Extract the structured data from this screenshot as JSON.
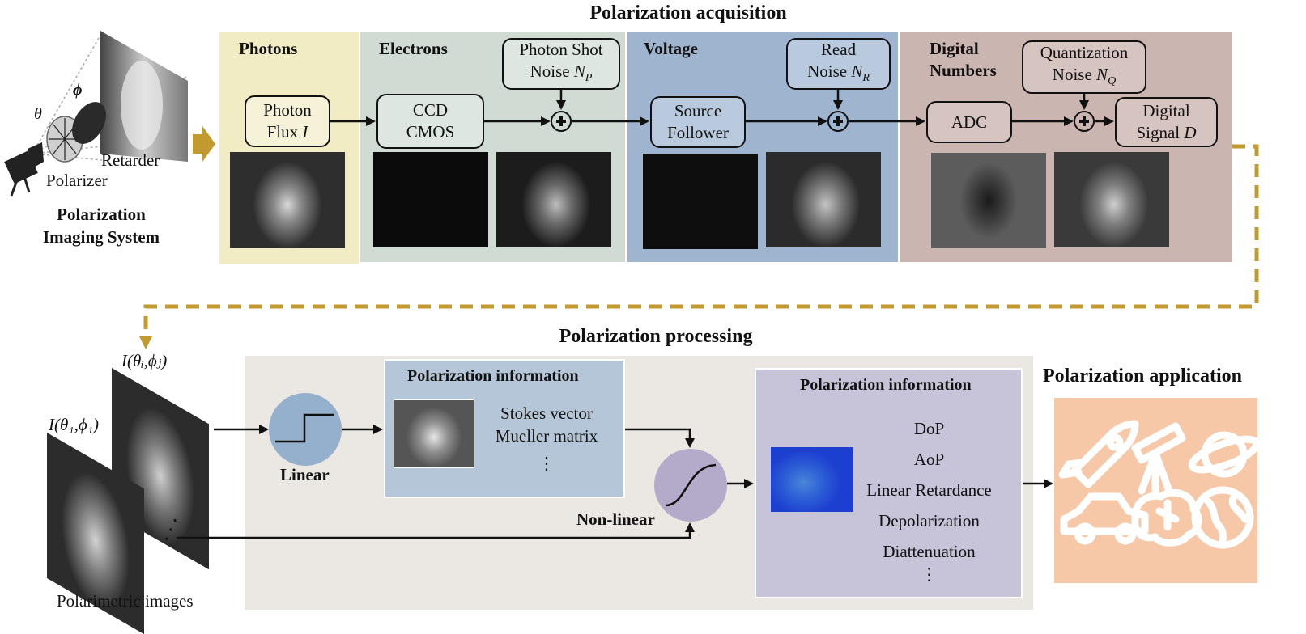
{
  "acquisition": {
    "title": "Polarization acquisition",
    "system_label_line1": "Polarization",
    "system_label_line2": "Imaging System",
    "polarizer": "Polarizer",
    "retarder": "Retarder",
    "theta": "θ",
    "phi": "ϕ",
    "panels": {
      "photons": "Photons",
      "electrons": "Electrons",
      "voltage": "Voltage",
      "digital_line1": "Digital",
      "digital_line2": "Numbers"
    },
    "boxes": {
      "photon_flux_line1": "Photon",
      "photon_flux_line2": "Flux",
      "photon_flux_var": "I",
      "ccd_line1": "CCD",
      "ccd_line2": "CMOS",
      "shot_noise_line1": "Photon Shot",
      "shot_noise_line2": "Noise",
      "shot_noise_var": "N",
      "shot_noise_sub": "P",
      "source_follower_line1": "Source",
      "source_follower_line2": "Follower",
      "read_noise_line1": "Read",
      "read_noise_line2": "Noise",
      "read_noise_var": "N",
      "read_noise_sub": "R",
      "adc": "ADC",
      "quant_noise_line1": "Quantization",
      "quant_noise_line2": "Noise",
      "quant_noise_var": "N",
      "quant_noise_sub": "Q",
      "digital_signal_line1": "Digital",
      "digital_signal_line2": "Signal",
      "digital_signal_var": "D"
    }
  },
  "processing": {
    "title": "Polarization processing",
    "image_label_j": "I(θᵢ,ϕⱼ)",
    "image_label_1": "I(θ₁,ϕ₁)",
    "polarimetric_images": "Polarimetric images",
    "linear": "Linear",
    "nonlinear": "Non-linear",
    "info_title_1": "Polarization information",
    "info_items_1": [
      "Stokes vector",
      "Mueller matrix",
      "⋮"
    ],
    "info_title_2": "Polarization information",
    "info_items_2": [
      "DoP",
      "AoP",
      "Linear Retardance",
      "Depolarization",
      "Diattenuation",
      "⋮"
    ]
  },
  "application": {
    "title": "Polarization application",
    "icons": [
      "rocket-icon",
      "telescope-icon",
      "planet-icon",
      "car-icon",
      "brain-icon",
      "globe-icon"
    ]
  },
  "colors": {
    "photons": "#f1ecc4",
    "electrons": "#cfdbd3",
    "voltage": "#9fb4cf",
    "digital": "#cbb5b1",
    "processing_bg": "#ebe8e3",
    "info1": "#b5c6d8",
    "info2": "#c7c3d9",
    "application": "#f6c8a8",
    "gold": "#c39a2f"
  }
}
